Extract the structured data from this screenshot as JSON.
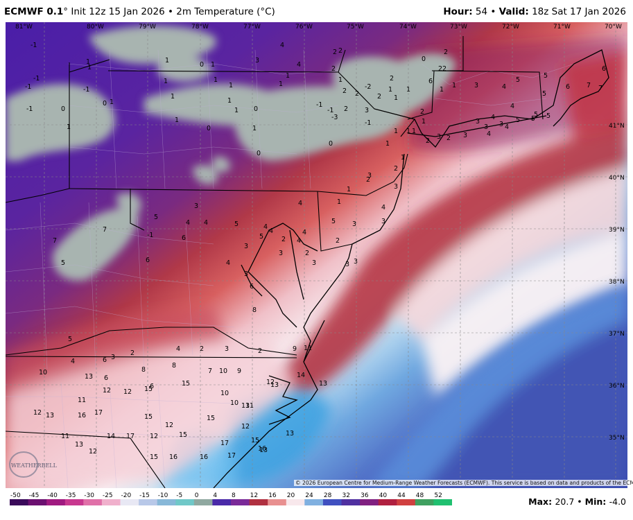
{
  "header": {
    "model": "ECMWF 0.1",
    "degree": "°",
    "init": " Init 12z 15 Jan 2026",
    "sep": " • ",
    "field": "2m Temperature (",
    "unit": "°C",
    "field_close": ")",
    "hour_label": "Hour:",
    "hour_value": "54",
    "valid_label": "Valid:",
    "valid_value": "18z Sat 17 Jan 2026"
  },
  "longitudes": [
    "81°W",
    "80°W",
    "79°W",
    "78°W",
    "77°W",
    "76°W",
    "75°W",
    "74°W",
    "73°W",
    "72°W",
    "71°W",
    "70°W"
  ],
  "latitudes": [
    "41°N",
    "40°N",
    "39°N",
    "38°N",
    "37°N",
    "36°N",
    "35°N"
  ],
  "colorbar": {
    "ticks": [
      "-50",
      "-45",
      "-40",
      "-35",
      "-30",
      "-25",
      "-20",
      "-15",
      "-10",
      "-5",
      "0",
      "4",
      "8",
      "12",
      "16",
      "20",
      "24",
      "28",
      "32",
      "36",
      "40",
      "44",
      "48",
      "52"
    ],
    "colors": [
      "#3a0a5a",
      "#6b1070",
      "#a01a80",
      "#c8388f",
      "#e070a8",
      "#f0b0cc",
      "#e8e8f4",
      "#b8c8e8",
      "#88b8d8",
      "#70c8c8",
      "#90a8a0",
      "#4a2aa8",
      "#7a2a98",
      "#b03040",
      "#e89090",
      "#f8e8ec",
      "#80b0e0",
      "#4050c0",
      "#5030a0",
      "#802080",
      "#b02040",
      "#d04040",
      "#40a060",
      "#20c070"
    ]
  },
  "stats": {
    "max_label": "Max:",
    "max_value": "20.7",
    "sep": " • ",
    "min_label": "Min:",
    "min_value": "-4.0"
  },
  "copyright": "© 2026 European Centre for Medium-Range Weather Forecasts (ECMWF). This service is based on data and products of the ECMWF.",
  "logo_text": "WEATHERBELL",
  "station_labels": [
    "-1",
    "-1",
    "1",
    "-1",
    "-1",
    "0",
    "1",
    "1",
    "-1",
    "1",
    "0",
    "1",
    "1",
    "1",
    "1",
    "0",
    "1",
    "1",
    "1",
    "1",
    "0",
    "0",
    "1",
    "1",
    "1",
    "4",
    "3",
    "4",
    "1",
    "2",
    "2",
    "2",
    "1",
    "2",
    "2",
    "2",
    "3",
    "2",
    "2",
    "1",
    "1",
    "1",
    "-1",
    "-2",
    "-3",
    "0",
    "-1",
    "0",
    "-1",
    "1",
    "1",
    "1",
    "0",
    "2",
    "2",
    "3",
    "4",
    "5",
    "5",
    "6",
    "7",
    "7",
    "5",
    "6",
    "5",
    "4",
    "4",
    "3",
    "3",
    "3",
    "2",
    "3",
    "2",
    "2",
    "1",
    "1",
    "1",
    "4",
    "4",
    "3",
    "5",
    "5",
    "5",
    "6",
    "2",
    "1",
    "2",
    "1",
    "2",
    "3",
    "4",
    "3",
    "3",
    "1",
    "1",
    "3",
    "4",
    "4",
    "2",
    "5",
    "2",
    "5",
    "3",
    "3",
    "4",
    "4",
    "4",
    "5",
    "4",
    "6",
    "8",
    "3",
    "3",
    "3",
    "4",
    "2",
    "3",
    "-1",
    "3",
    "4",
    "5",
    "6",
    "6",
    "7",
    "7",
    "5",
    "5",
    "6",
    "6",
    "4",
    "3",
    "2",
    "2",
    "4",
    "3",
    "2",
    "8",
    "6",
    "9",
    "8",
    "7",
    "10",
    "9",
    "11",
    "13",
    "10",
    "11",
    "12",
    "12",
    "15",
    "15",
    "10",
    "10",
    "11",
    "12",
    "13",
    "14",
    "13",
    "12",
    "13",
    "16",
    "17",
    "15",
    "15",
    "12",
    "12",
    "11",
    "13",
    "12",
    "14",
    "17",
    "15",
    "16",
    "16",
    "17",
    "15",
    "13",
    "12",
    "15",
    "17",
    "16",
    "13",
    "13"
  ]
}
